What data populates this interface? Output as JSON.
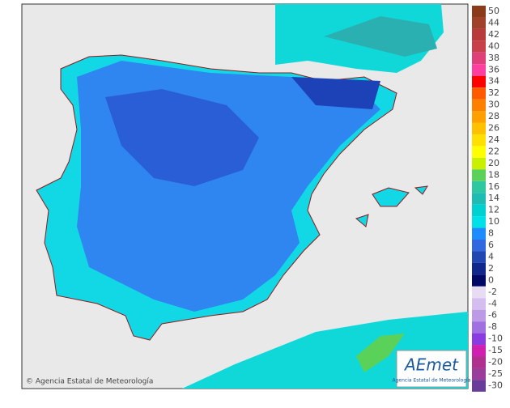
{
  "legend": {
    "items": [
      {
        "label": 50,
        "color": "#8b3a1a"
      },
      {
        "label": 44,
        "color": "#a0412a"
      },
      {
        "label": 42,
        "color": "#b83a3a"
      },
      {
        "label": 40,
        "color": "#c8404a"
      },
      {
        "label": 38,
        "color": "#e0407a"
      },
      {
        "label": 36,
        "color": "#ff3fa0"
      },
      {
        "label": 34,
        "color": "#ff0000"
      },
      {
        "label": 32,
        "color": "#ff5a00"
      },
      {
        "label": 30,
        "color": "#ff7f00"
      },
      {
        "label": 28,
        "color": "#ffa000"
      },
      {
        "label": 26,
        "color": "#ffc000"
      },
      {
        "label": 24,
        "color": "#ffe000"
      },
      {
        "label": 22,
        "color": "#ffff00"
      },
      {
        "label": 20,
        "color": "#c8f000"
      },
      {
        "label": 18,
        "color": "#5ad25a"
      },
      {
        "label": 16,
        "color": "#2ec8a0"
      },
      {
        "label": 14,
        "color": "#1fbcb4"
      },
      {
        "label": 12,
        "color": "#00d0d0"
      },
      {
        "label": 10,
        "color": "#00e0e8"
      },
      {
        "label": 8,
        "color": "#1e8cff"
      },
      {
        "label": 6,
        "color": "#3068e0"
      },
      {
        "label": 4,
        "color": "#2048b0"
      },
      {
        "label": 2,
        "color": "#10288c"
      },
      {
        "label": 0,
        "color": "#000a66"
      },
      {
        "label": -2,
        "color": "#e8dcf4"
      },
      {
        "label": -4,
        "color": "#d4bef0"
      },
      {
        "label": -6,
        "color": "#bc9ae6"
      },
      {
        "label": -8,
        "color": "#a070e0"
      },
      {
        "label": -10,
        "color": "#8a3ce0"
      },
      {
        "label": -15,
        "color": "#d020b0"
      },
      {
        "label": -20,
        "color": "#b03090"
      },
      {
        "label": -25,
        "color": "#9a3c9a"
      },
      {
        "label": -30,
        "color": "#6a3c9a"
      }
    ]
  },
  "copyright": "© Agencia Estatal de Meteorología",
  "logo": {
    "text": "AEmet",
    "subtitle": "Agencia Estatal de Meteorología"
  }
}
